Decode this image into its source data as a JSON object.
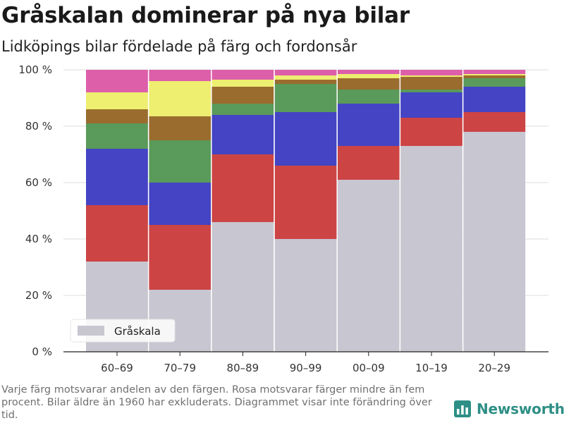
{
  "header": {
    "title": "Gråskalan dominerar på nya bilar",
    "subtitle": "Lidköpings bilar fördelade på färg och fordonsår"
  },
  "footnote": "Varje färg motsvarar andelen av den färgen. Rosa motsvarar färger mindre än fem procent. Bilar äldre än 1960 har exkluderats. Diagrammet visar inte förändring över tid.",
  "brand": {
    "name": "Newsworthy"
  },
  "chart_data": {
    "type": "bar",
    "stacked": true,
    "title": "Gråskalan dominerar på nya bilar",
    "subtitle": "Lidköpings bilar fördelade på färg och fordonsår",
    "xlabel": "",
    "ylabel": "",
    "ylim": [
      0,
      100
    ],
    "yticks": [
      0,
      20,
      40,
      60,
      80,
      100
    ],
    "ytick_labels": [
      "0 %",
      "20 %",
      "40 %",
      "60 %",
      "80 %",
      "100 %"
    ],
    "grid": true,
    "legend_position": "bottom-left",
    "categories": [
      "60–69",
      "70–79",
      "80–89",
      "90–99",
      "00–09",
      "10–19",
      "20–29"
    ],
    "series": [
      {
        "name": "Gråskala",
        "color": "#c8c6d0",
        "values": [
          32,
          22,
          46,
          40,
          61,
          73,
          78
        ]
      },
      {
        "color": "#cc4444",
        "values": [
          20,
          23,
          24,
          26,
          12,
          10,
          7
        ]
      },
      {
        "color": "#4444c4",
        "values": [
          20,
          15,
          14,
          19,
          15,
          9,
          9
        ]
      },
      {
        "color": "#5a9a5a",
        "values": [
          9,
          15,
          4,
          10,
          5,
          1,
          3
        ]
      },
      {
        "color": "#9a6c2e",
        "values": [
          5,
          8.5,
          6,
          1.5,
          4,
          4.5,
          1
        ]
      },
      {
        "color": "#eeee70",
        "values": [
          6,
          12.5,
          2.5,
          1.5,
          1.5,
          0.5,
          0.5
        ]
      },
      {
        "color": "#dd5faa",
        "values": [
          8,
          4,
          3.5,
          2,
          1.5,
          2,
          1.5
        ]
      }
    ],
    "legend": [
      {
        "label": "Gråskala",
        "color": "#c8c6d0"
      }
    ]
  }
}
